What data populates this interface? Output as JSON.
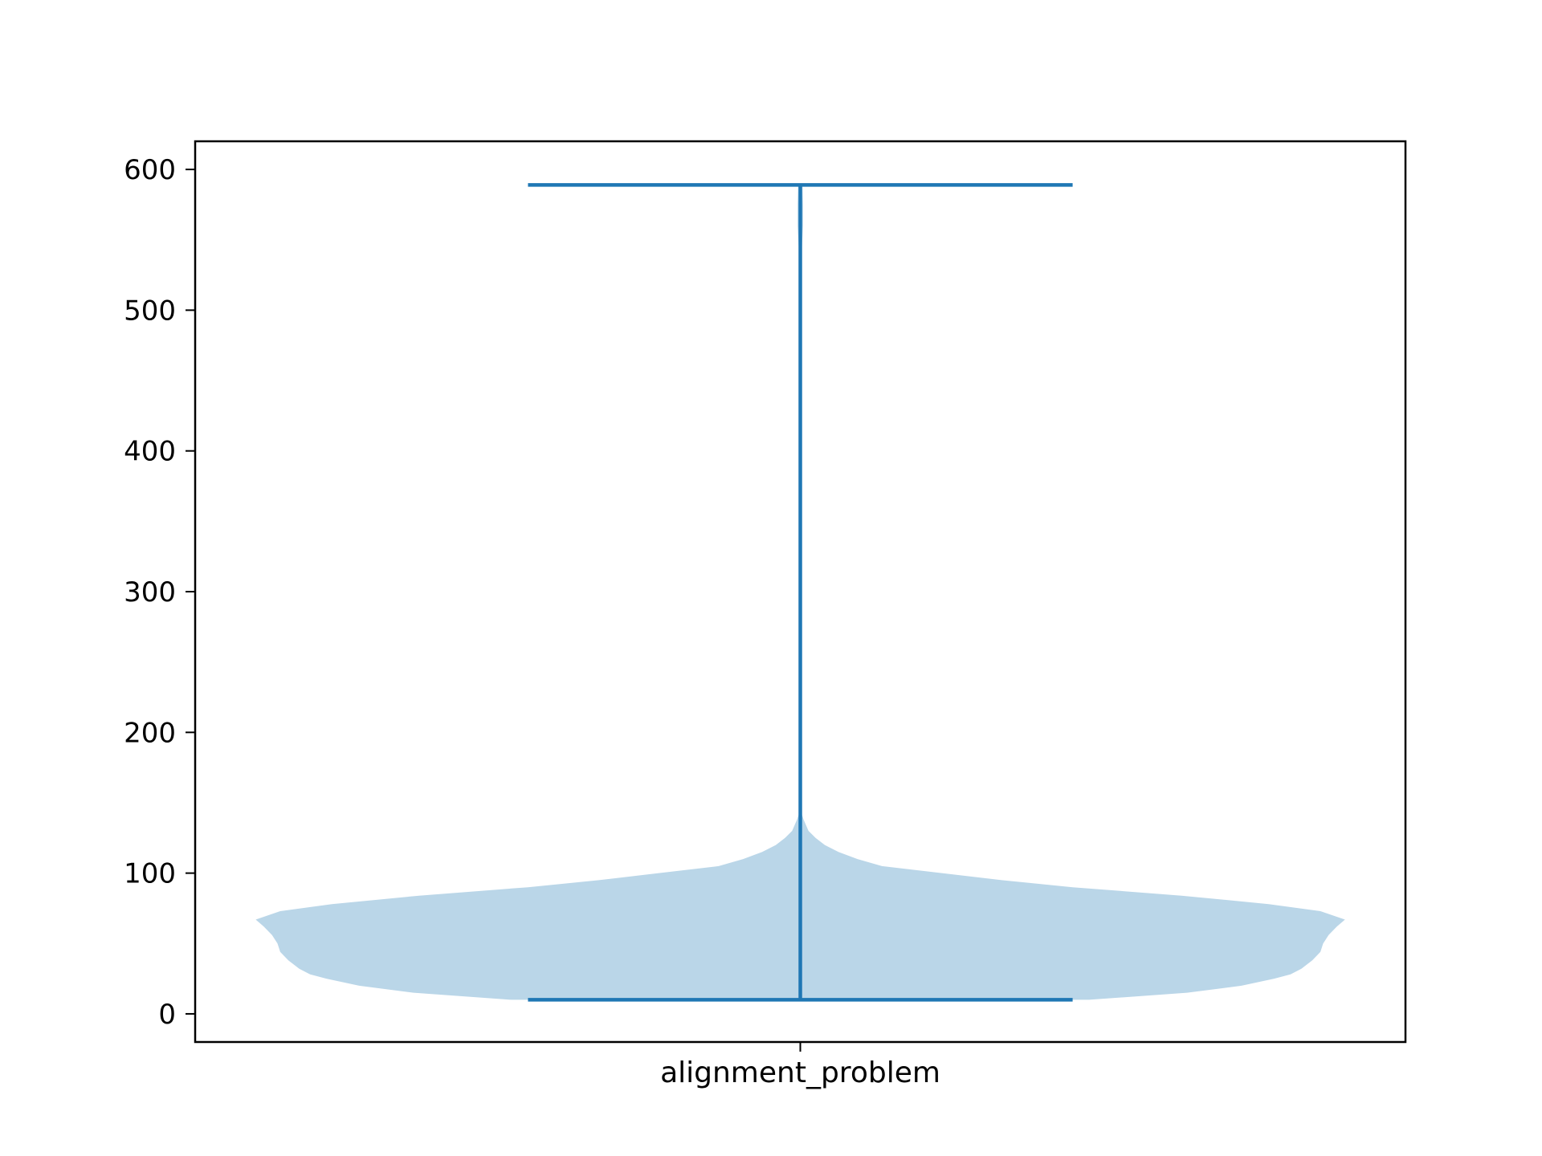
{
  "chart_data": {
    "type": "violin",
    "categories": [
      "alignment_problem"
    ],
    "y_ticks": [
      0,
      100,
      200,
      300,
      400,
      500,
      600
    ],
    "ylim": [
      -20,
      620
    ],
    "title": "",
    "xlabel": "",
    "ylabel": "",
    "grid": false,
    "colors": {
      "line": "#1f77b4",
      "fill": "#bad6e8",
      "axis": "#000000"
    },
    "series": [
      {
        "category": "alignment_problem",
        "min": 10,
        "max": 589,
        "density_profile": [
          [
            10,
            0.53
          ],
          [
            15,
            0.71
          ],
          [
            20,
            0.81
          ],
          [
            25,
            0.87
          ],
          [
            28,
            0.9
          ],
          [
            32,
            0.92
          ],
          [
            38,
            0.94
          ],
          [
            44,
            0.955
          ],
          [
            50,
            0.96
          ],
          [
            56,
            0.97
          ],
          [
            62,
            0.985
          ],
          [
            67,
            1.0
          ],
          [
            73,
            0.955
          ],
          [
            78,
            0.86
          ],
          [
            84,
            0.7
          ],
          [
            90,
            0.5
          ],
          [
            95,
            0.37
          ],
          [
            100,
            0.26
          ],
          [
            105,
            0.15
          ],
          [
            110,
            0.105
          ],
          [
            115,
            0.07
          ],
          [
            120,
            0.045
          ],
          [
            125,
            0.028
          ],
          [
            130,
            0.015
          ],
          [
            138,
            0.006
          ],
          [
            145,
            0.0
          ],
          [
            530,
            0.0
          ],
          [
            545,
            0.003
          ],
          [
            560,
            0.005
          ],
          [
            575,
            0.005
          ],
          [
            589,
            0.004
          ]
        ]
      }
    ]
  }
}
